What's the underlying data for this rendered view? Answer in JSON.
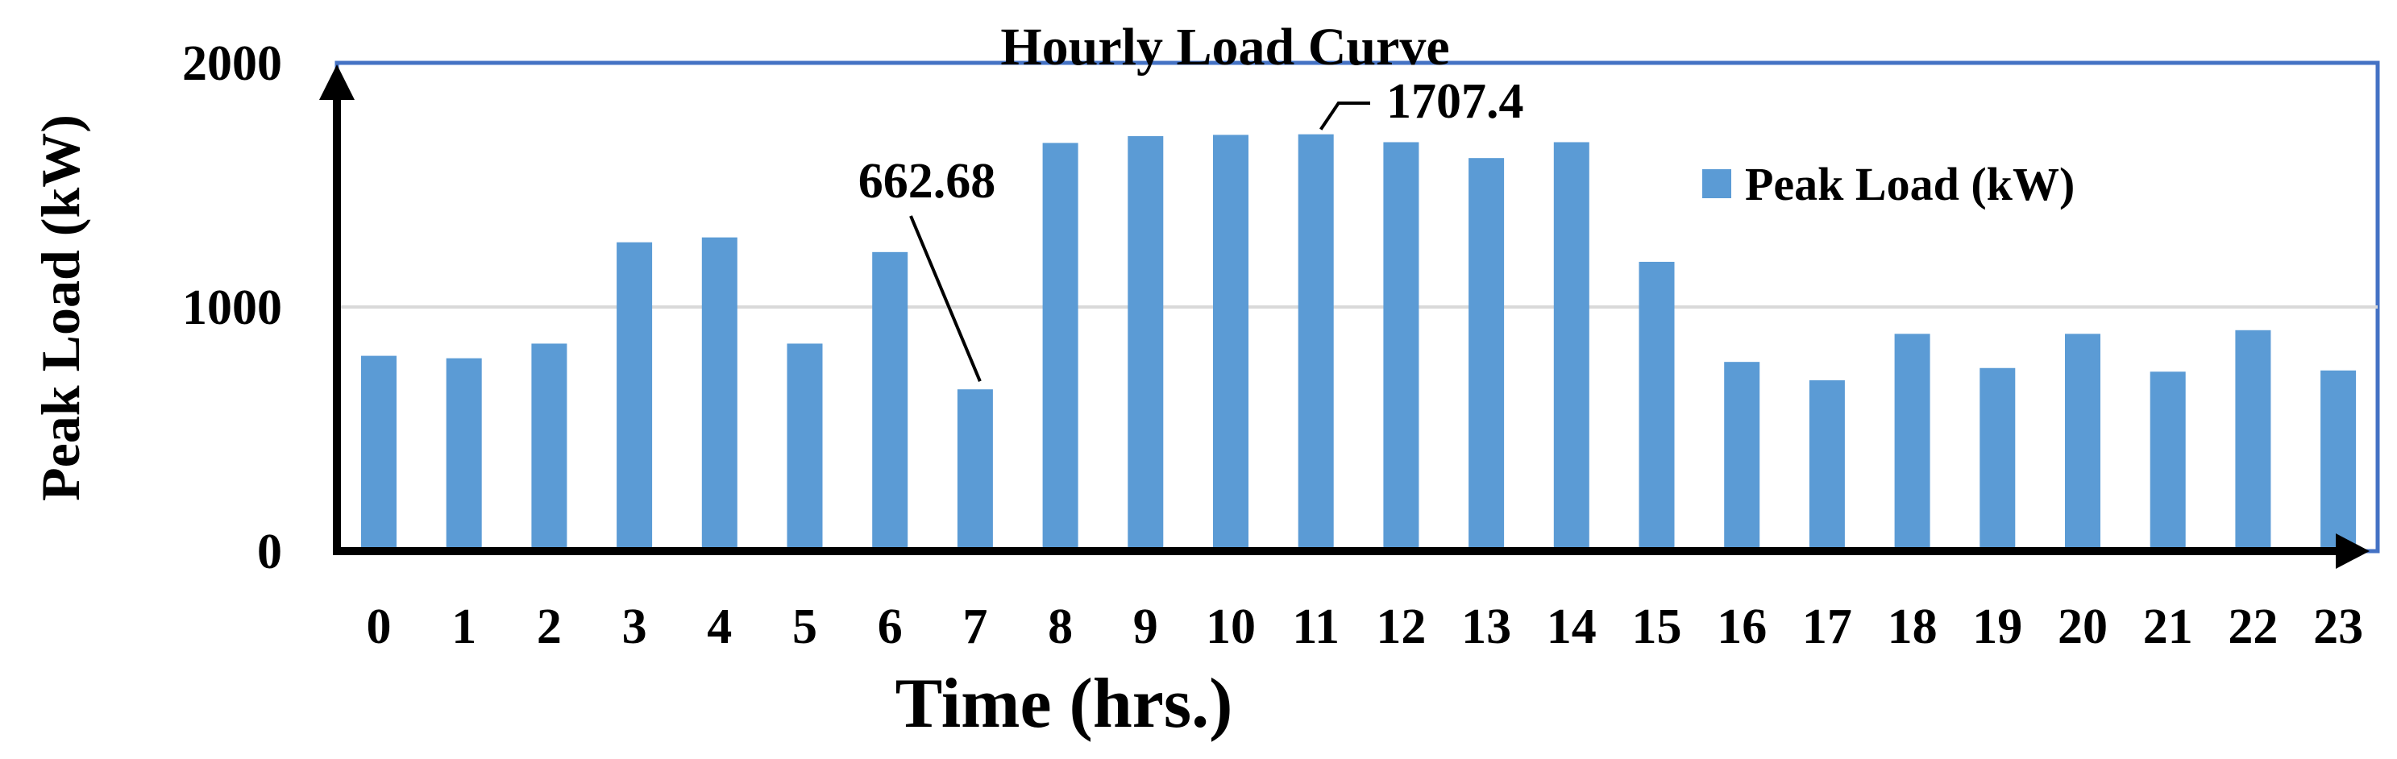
{
  "colors": {
    "bar": "#5B9BD5",
    "plot_border": "#4472C4",
    "gridline": "#D9D9D9",
    "axis": "#000000",
    "text": "#000000"
  },
  "chart_data": {
    "type": "bar",
    "title": "Hourly Load Curve",
    "xlabel": "Time (hrs.)",
    "ylabel": "Peak Load (kW)",
    "categories": [
      "0",
      "1",
      "2",
      "3",
      "4",
      "5",
      "6",
      "7",
      "8",
      "9",
      "10",
      "11",
      "12",
      "13",
      "14",
      "15",
      "16",
      "17",
      "18",
      "19",
      "20",
      "21",
      "22",
      "23"
    ],
    "series": [
      {
        "name": "Peak Load (kW)",
        "values": [
          800,
          790,
          850,
          1265,
          1285,
          850,
          1225,
          662.68,
          1672,
          1700,
          1705,
          1707.4,
          1675,
          1610,
          1675,
          1185,
          775,
          700,
          890,
          750,
          890,
          735,
          905,
          740
        ]
      }
    ],
    "ylim": [
      0,
      2000
    ],
    "yticks": [
      "0",
      "1000",
      "2000"
    ],
    "grid": true,
    "legend": "top-right",
    "annotations": [
      {
        "category": "7",
        "text": "662.68"
      },
      {
        "category": "11",
        "text": "1707.4"
      }
    ]
  }
}
